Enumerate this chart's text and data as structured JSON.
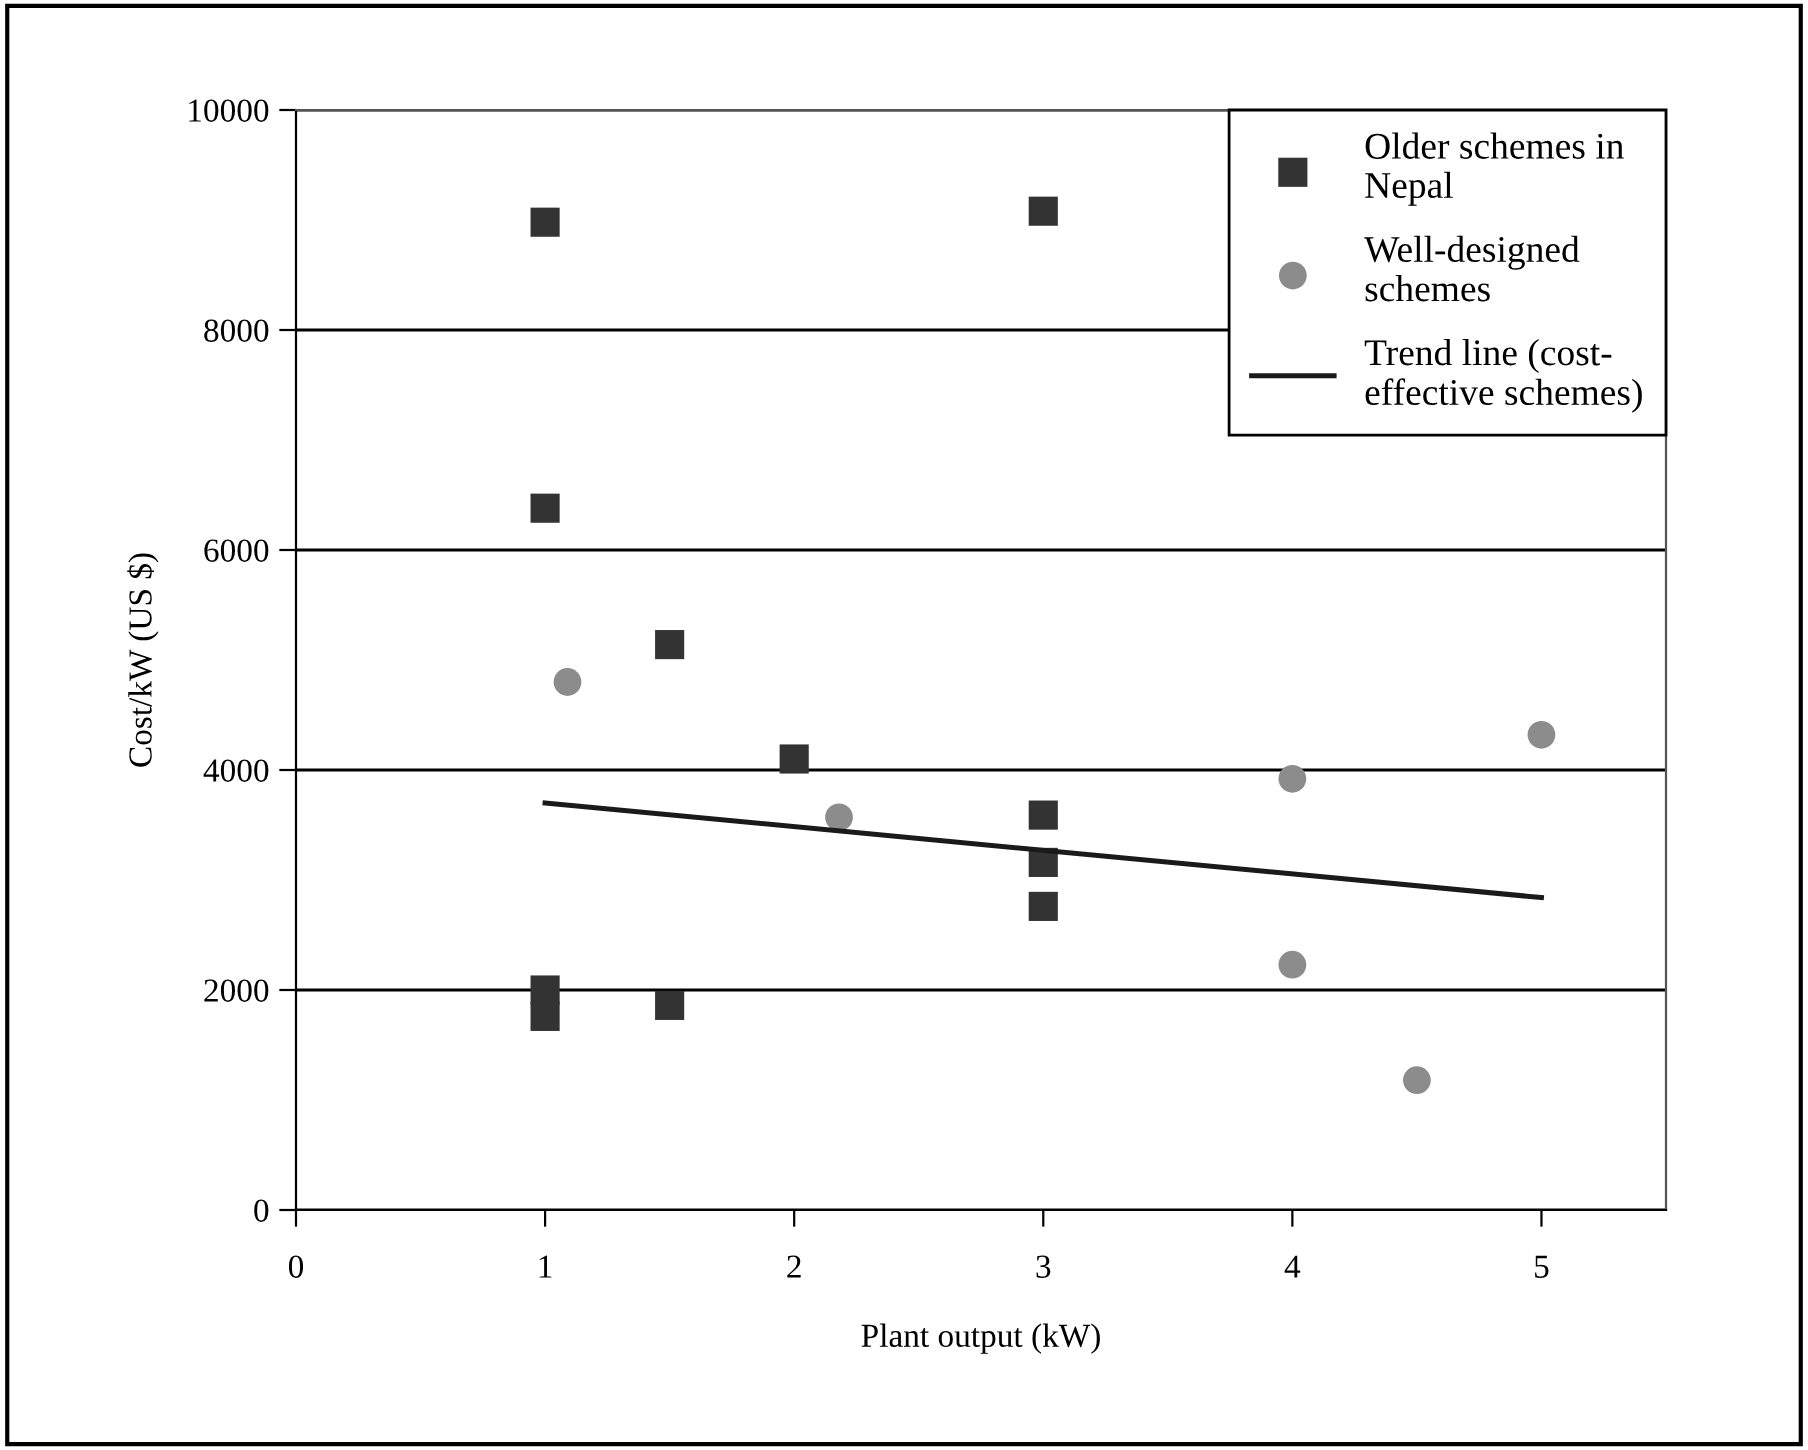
{
  "chart_data": {
    "type": "scatter",
    "xlabel": "Plant output (kW)",
    "ylabel": "Cost/kW (US $)",
    "xlim": [
      0,
      5.5
    ],
    "xticks": [
      0,
      1,
      2,
      3,
      4,
      5
    ],
    "ylim": [
      0,
      10000
    ],
    "yticks": [
      0,
      2000,
      4000,
      6000,
      8000,
      10000
    ],
    "grid": "y",
    "legend": "top right",
    "series": [
      {
        "name": "Older schemes in\nNepal",
        "marker": "square",
        "color": "#333333",
        "x": [
          1,
          3,
          1,
          1.5,
          2,
          3,
          3,
          3,
          1,
          1,
          1.5
        ],
        "values": [
          8980,
          9080,
          6380,
          5140,
          4100,
          3590,
          3160,
          2760,
          2000,
          1760,
          1860
        ]
      },
      {
        "name": "Well-designed\nschemes",
        "marker": "circle",
        "color": "#8c8c8c",
        "x": [
          1.09,
          2.18,
          4,
          5,
          4,
          4.5
        ],
        "values": [
          4800,
          3570,
          3920,
          4320,
          2230,
          1180
        ]
      },
      {
        "name": "Trend line (cost-\neffective schemes)",
        "type": "line",
        "marker": "none",
        "line_style": "solid",
        "color": "#1a1a1a",
        "x": [
          1,
          5
        ],
        "values": [
          3700,
          2840
        ]
      }
    ]
  }
}
